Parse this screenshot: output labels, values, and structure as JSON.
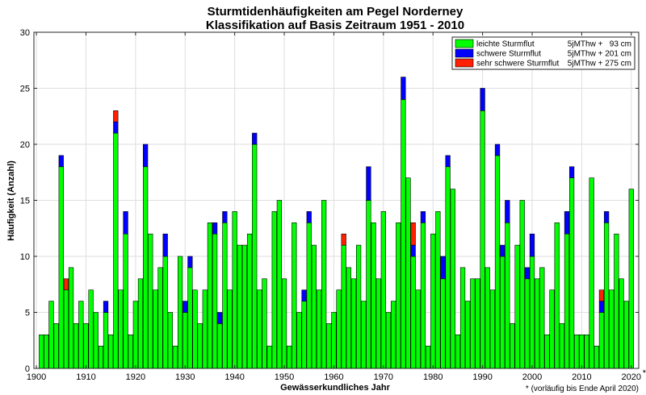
{
  "chart_data": {
    "type": "bar",
    "stacked": true,
    "title": "Sturmtidenhäufigkeiten am Pegel Norderney",
    "subtitle": "Klassifikation auf Basis Zeitraum 1951 - 2010",
    "xlabel": "Gewässerkundliches Jahr",
    "ylabel": "Häufigkeit (Anzahl)",
    "xlim": [
      1899.5,
      2021.5
    ],
    "ylim": [
      0,
      30
    ],
    "grid": true,
    "legend_position": "top-right",
    "xticks": [
      1900,
      1910,
      1920,
      1930,
      1940,
      1950,
      1960,
      1970,
      1980,
      1990,
      2000,
      2010,
      2020
    ],
    "xtick_labels": [
      "1900",
      "1910",
      "1920",
      "1930",
      "1940",
      "1950",
      "1960",
      "1970",
      "1980",
      "1990",
      "2000",
      "2010",
      "2020"
    ],
    "xtick_last_marker": "*",
    "yticks": [
      0,
      5,
      10,
      15,
      20,
      25,
      30
    ],
    "footnote": "* (vorläufig bis Ende April 2020)",
    "x": [
      1901,
      1902,
      1903,
      1904,
      1905,
      1906,
      1907,
      1908,
      1909,
      1910,
      1911,
      1912,
      1913,
      1914,
      1915,
      1916,
      1917,
      1918,
      1919,
      1920,
      1921,
      1922,
      1923,
      1924,
      1925,
      1926,
      1927,
      1928,
      1929,
      1930,
      1931,
      1932,
      1933,
      1934,
      1935,
      1936,
      1937,
      1938,
      1939,
      1940,
      1941,
      1942,
      1943,
      1944,
      1945,
      1946,
      1947,
      1948,
      1949,
      1950,
      1951,
      1952,
      1953,
      1954,
      1955,
      1956,
      1957,
      1958,
      1959,
      1960,
      1961,
      1962,
      1963,
      1964,
      1965,
      1966,
      1967,
      1968,
      1969,
      1970,
      1971,
      1972,
      1973,
      1974,
      1975,
      1976,
      1977,
      1978,
      1979,
      1980,
      1981,
      1982,
      1983,
      1984,
      1985,
      1986,
      1987,
      1988,
      1989,
      1990,
      1991,
      1992,
      1993,
      1994,
      1995,
      1996,
      1997,
      1998,
      1999,
      2000,
      2001,
      2002,
      2003,
      2004,
      2005,
      2006,
      2007,
      2008,
      2009,
      2010,
      2011,
      2012,
      2013,
      2014,
      2015,
      2016,
      2017,
      2018,
      2019,
      2020
    ],
    "series": [
      {
        "name": "leichte Sturmflut",
        "threshold": "5jMThw +   93 cm",
        "color": "#00ff00",
        "values": [
          3,
          3,
          6,
          4,
          18,
          7,
          9,
          4,
          6,
          4,
          7,
          5,
          2,
          5,
          3,
          21,
          7,
          12,
          3,
          6,
          8,
          18,
          12,
          7,
          9,
          10,
          5,
          2,
          10,
          5,
          9,
          7,
          4,
          7,
          13,
          12,
          4,
          13,
          7,
          14,
          11,
          11,
          12,
          20,
          7,
          8,
          2,
          14,
          15,
          8,
          2,
          13,
          5,
          6,
          13,
          11,
          7,
          15,
          4,
          5,
          7,
          11,
          9,
          8,
          11,
          6,
          15,
          13,
          8,
          14,
          5,
          6,
          13,
          24,
          17,
          10,
          7,
          13,
          2,
          12,
          14,
          8,
          18,
          16,
          3,
          9,
          6,
          8,
          8,
          23,
          9,
          7,
          19,
          10,
          13,
          4,
          11,
          15,
          8,
          10,
          8,
          9,
          3,
          7,
          13,
          4,
          12,
          17,
          3,
          3,
          3,
          17,
          2,
          5,
          13,
          7,
          12,
          8,
          6,
          16
        ]
      },
      {
        "name": "schwere Sturmflut",
        "threshold": "5jMThw + 201 cm",
        "color": "#0000ff",
        "values": [
          0,
          0,
          0,
          0,
          1,
          0,
          0,
          0,
          0,
          0,
          0,
          0,
          0,
          1,
          0,
          1,
          0,
          2,
          0,
          0,
          0,
          2,
          0,
          0,
          0,
          2,
          0,
          0,
          0,
          1,
          1,
          0,
          0,
          0,
          0,
          1,
          1,
          1,
          0,
          0,
          0,
          0,
          0,
          1,
          0,
          0,
          0,
          0,
          0,
          0,
          0,
          0,
          0,
          1,
          1,
          0,
          0,
          0,
          0,
          0,
          0,
          0,
          0,
          0,
          0,
          0,
          3,
          0,
          0,
          0,
          0,
          0,
          0,
          2,
          0,
          1,
          0,
          1,
          0,
          0,
          0,
          2,
          1,
          0,
          0,
          0,
          0,
          0,
          0,
          2,
          0,
          0,
          1,
          1,
          2,
          0,
          0,
          0,
          1,
          2,
          0,
          0,
          0,
          0,
          0,
          0,
          2,
          1,
          0,
          0,
          0,
          0,
          0,
          1,
          1,
          0,
          0,
          0,
          0,
          0
        ]
      },
      {
        "name": "sehr schwere Sturmflut",
        "threshold": "5jMThw + 275 cm",
        "color": "#ff2000",
        "values": [
          0,
          0,
          0,
          0,
          0,
          1,
          0,
          0,
          0,
          0,
          0,
          0,
          0,
          0,
          0,
          1,
          0,
          0,
          0,
          0,
          0,
          0,
          0,
          0,
          0,
          0,
          0,
          0,
          0,
          0,
          0,
          0,
          0,
          0,
          0,
          0,
          0,
          0,
          0,
          0,
          0,
          0,
          0,
          0,
          0,
          0,
          0,
          0,
          0,
          0,
          0,
          0,
          0,
          0,
          0,
          0,
          0,
          0,
          0,
          0,
          0,
          1,
          0,
          0,
          0,
          0,
          0,
          0,
          0,
          0,
          0,
          0,
          0,
          0,
          0,
          2,
          0,
          0,
          0,
          0,
          0,
          0,
          0,
          0,
          0,
          0,
          0,
          0,
          0,
          0,
          0,
          0,
          0,
          0,
          0,
          0,
          0,
          0,
          0,
          0,
          0,
          0,
          0,
          0,
          0,
          0,
          0,
          0,
          0,
          0,
          0,
          0,
          0,
          1,
          0,
          0,
          0,
          0,
          0,
          0
        ]
      }
    ]
  }
}
